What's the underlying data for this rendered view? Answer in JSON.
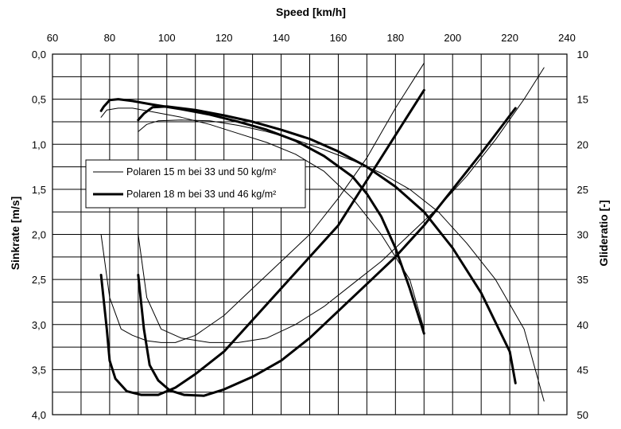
{
  "chart_data": {
    "type": "line",
    "title": "",
    "x_axis": {
      "label": "Speed [km/h]",
      "position": "top",
      "range": [
        60,
        240
      ],
      "ticks": [
        60,
        80,
        100,
        120,
        140,
        160,
        180,
        200,
        220,
        240
      ],
      "tick_labels": [
        "60",
        "80",
        "100",
        "120",
        "140",
        "160",
        "180",
        "200",
        "220",
        "240"
      ]
    },
    "y_axis_left": {
      "label": "Sinkrate [m/s]",
      "range": [
        0,
        4
      ],
      "inverted": true,
      "ticks": [
        0,
        0.5,
        1,
        1.5,
        2,
        2.5,
        3,
        3.5,
        4
      ],
      "tick_labels": [
        "0,0",
        "0,5",
        "1,0",
        "1,5",
        "2,0",
        "2,5",
        "3,0",
        "3,5",
        "4,0"
      ]
    },
    "y_axis_right": {
      "label": "Glideratio [-]",
      "range": [
        10,
        50
      ],
      "inverted": true,
      "ticks": [
        10,
        15,
        20,
        25,
        30,
        35,
        40,
        45,
        50
      ],
      "tick_labels": [
        "10",
        "15",
        "20",
        "25",
        "30",
        "35",
        "40",
        "45",
        "50"
      ]
    },
    "grid": true,
    "legend": {
      "placement": "left",
      "entries": [
        {
          "label": "Polaren 15 m bei 33 und 50  kg/m²",
          "style": "thin"
        },
        {
          "label": "Polaren 18 m bei 33 und 46 kg/m²",
          "style": "thick"
        }
      ]
    },
    "series": [
      {
        "name": "Polaren 15 m bei 33 und 50  kg/m²",
        "curve": "sink rate",
        "load": "33 kg/m²",
        "axis": "left",
        "style": "thin",
        "x": [
          77,
          80,
          84,
          88,
          93,
          98,
          103,
          110,
          120,
          130,
          140,
          150,
          160,
          170,
          180,
          190
        ],
        "y": [
          2.0,
          2.7,
          3.05,
          3.12,
          3.18,
          3.2,
          3.2,
          3.12,
          2.9,
          2.6,
          2.3,
          2.0,
          1.6,
          1.15,
          0.6,
          0.1
        ]
      },
      {
        "name": "Polaren 15 m bei 33 und 50  kg/m²",
        "curve": "sink rate",
        "load": "50 kg/m²",
        "axis": "left",
        "style": "thin",
        "x": [
          90,
          93,
          98,
          105,
          115,
          125,
          135,
          145,
          155,
          165,
          175,
          185,
          195,
          205,
          215,
          225,
          232
        ],
        "y": [
          2.0,
          2.7,
          3.05,
          3.15,
          3.2,
          3.2,
          3.15,
          3.0,
          2.8,
          2.55,
          2.3,
          2.0,
          1.7,
          1.35,
          0.95,
          0.5,
          0.15
        ]
      },
      {
        "name": "Polaren 15 m bei 33 und 50  kg/m²",
        "curve": "glide ratio",
        "load": "33 kg/m²",
        "axis": "right",
        "style": "thin",
        "x": [
          77,
          79,
          83,
          88,
          95,
          105,
          115,
          125,
          135,
          145,
          155,
          165,
          175,
          185,
          190
        ],
        "y": [
          17.0,
          16.2,
          16.0,
          16.0,
          16.4,
          17.0,
          17.8,
          18.8,
          19.8,
          21.1,
          23.0,
          26.0,
          30.0,
          35.0,
          40.5
        ]
      },
      {
        "name": "Polaren 15 m bei 33 und 50  kg/m²",
        "curve": "glide ratio",
        "load": "50 kg/m²",
        "axis": "right",
        "style": "thin",
        "x": [
          90,
          93,
          97,
          105,
          115,
          125,
          135,
          145,
          155,
          165,
          175,
          185,
          195,
          205,
          215,
          225,
          232
        ],
        "y": [
          18.6,
          17.8,
          17.4,
          17.3,
          17.4,
          17.9,
          18.6,
          19.5,
          20.6,
          21.8,
          23.2,
          25.0,
          27.5,
          31.0,
          35.0,
          40.5,
          48.5
        ]
      },
      {
        "name": "Polaren 18 m bei 33 und 46 kg/m²",
        "curve": "sink rate",
        "load": "33 kg/m²",
        "axis": "left",
        "style": "thick",
        "x": [
          77,
          79,
          80,
          82,
          86,
          91,
          97,
          103,
          110,
          120,
          130,
          140,
          150,
          160,
          170,
          180,
          190
        ],
        "y": [
          2.45,
          3.05,
          3.4,
          3.6,
          3.74,
          3.78,
          3.78,
          3.7,
          3.55,
          3.3,
          2.95,
          2.6,
          2.25,
          1.9,
          1.4,
          0.9,
          0.4
        ]
      },
      {
        "name": "Polaren 18 m bei 33 und 46 kg/m²",
        "curve": "sink rate",
        "load": "46 kg/m²",
        "axis": "left",
        "style": "thick",
        "x": [
          90,
          92,
          94,
          97,
          101,
          106,
          113,
          120,
          130,
          140,
          150,
          160,
          170,
          180,
          190,
          200,
          210,
          222
        ],
        "y": [
          2.45,
          3.05,
          3.45,
          3.62,
          3.73,
          3.78,
          3.79,
          3.72,
          3.58,
          3.4,
          3.15,
          2.85,
          2.55,
          2.25,
          1.9,
          1.5,
          1.1,
          0.6
        ]
      },
      {
        "name": "Polaren 18 m bei 33 und 46 kg/m²",
        "curve": "glide ratio",
        "load": "33 kg/m²",
        "axis": "right",
        "style": "thick",
        "x": [
          77,
          78,
          80,
          83,
          88,
          95,
          105,
          115,
          125,
          135,
          145,
          155,
          165,
          170,
          175,
          180,
          185,
          190
        ],
        "y": [
          16.3,
          15.8,
          15.1,
          15.0,
          15.2,
          15.6,
          16.1,
          16.7,
          17.5,
          18.4,
          19.6,
          21.3,
          23.6,
          25.5,
          28.0,
          31.5,
          36.0,
          41.0
        ]
      },
      {
        "name": "Polaren 18 m bei 33 und 46 kg/m²",
        "curve": "glide ratio",
        "load": "46 kg/m²",
        "axis": "right",
        "style": "thick",
        "x": [
          90,
          92,
          95,
          100,
          110,
          120,
          130,
          140,
          150,
          160,
          170,
          180,
          190,
          200,
          210,
          220,
          222
        ],
        "y": [
          17.3,
          16.6,
          15.9,
          15.8,
          16.2,
          16.8,
          17.5,
          18.4,
          19.4,
          20.8,
          22.5,
          24.7,
          27.5,
          31.5,
          36.5,
          43.0,
          46.5
        ]
      }
    ]
  }
}
